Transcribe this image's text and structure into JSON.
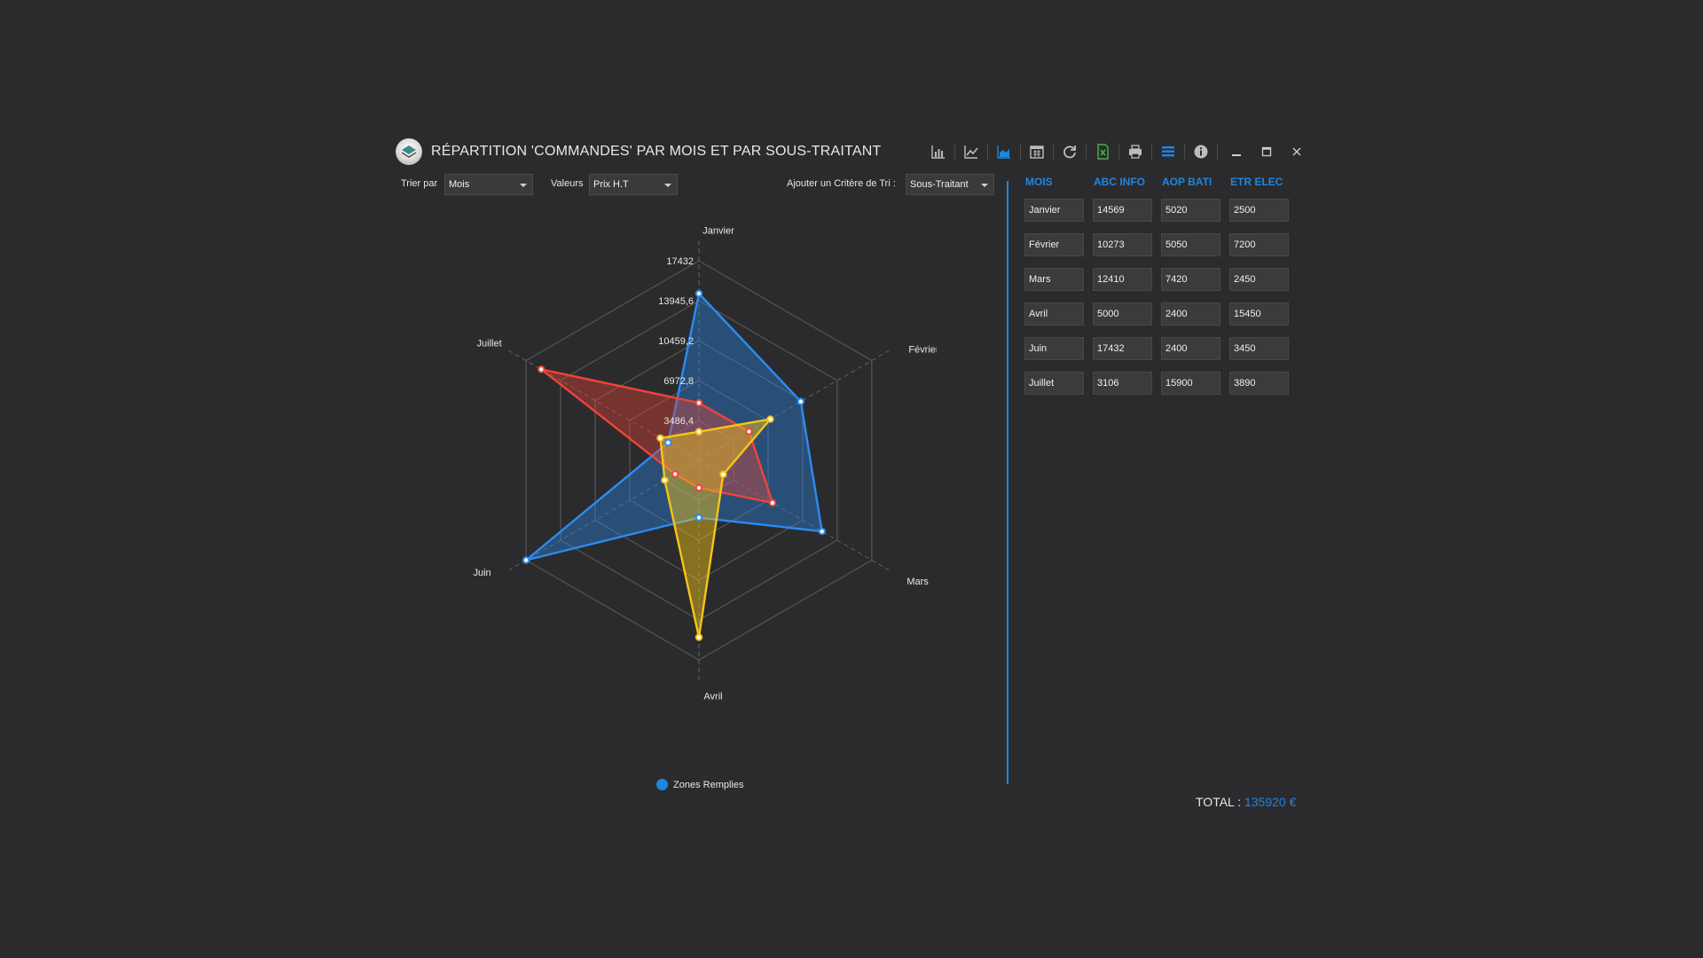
{
  "title": "RÉPARTITION 'COMMANDES' PAR MOIS ET PAR SOUS-TRAITANT",
  "toolbar": {
    "icons": [
      "bar-chart-icon",
      "line-chart-icon",
      "area-chart-icon",
      "calendar-icon",
      "refresh-icon",
      "excel-icon",
      "print-icon",
      "list-icon",
      "info-icon"
    ],
    "active": "area-chart-icon"
  },
  "filters": {
    "sort_label": "Trier par",
    "sort_value": "Mois",
    "values_label": "Valeurs",
    "values_value": "Prix H.T",
    "criteria_label": "Ajouter un Critère de Tri :",
    "criteria_value": "Sous-Traitant"
  },
  "colors": {
    "accent": "#1f86e0",
    "series": [
      "#2b8cf0",
      "#f04438",
      "#f5c518"
    ]
  },
  "chart_data": {
    "type": "radar",
    "categories": [
      "Janvier",
      "Février",
      "Mars",
      "Avril",
      "Juin",
      "Juillet"
    ],
    "ticks": [
      "3486,4",
      "6972,8",
      "10459,2",
      "13945,6",
      "17432"
    ],
    "rmax": 17432,
    "series": [
      {
        "name": "ABC INFO",
        "values": [
          14569,
          10273,
          12410,
          5000,
          17432,
          3106
        ]
      },
      {
        "name": "AOP BATI",
        "values": [
          5020,
          5050,
          7420,
          2400,
          2400,
          15900
        ]
      },
      {
        "name": "ETR ELEC",
        "values": [
          2500,
          7200,
          2450,
          15450,
          3450,
          3890
        ]
      }
    ],
    "legend": "Zones Remplies"
  },
  "table": {
    "headers": [
      "MOIS",
      "ABC INFO",
      "AOP BATI",
      "ETR ELEC"
    ],
    "rows": [
      [
        "Janvier",
        "14569",
        "5020",
        "2500"
      ],
      [
        "Février",
        "10273",
        "5050",
        "7200"
      ],
      [
        "Mars",
        "12410",
        "7420",
        "2450"
      ],
      [
        "Avril",
        "5000",
        "2400",
        "15450"
      ],
      [
        "Juin",
        "17432",
        "2400",
        "3450"
      ],
      [
        "Juillet",
        "3106",
        "15900",
        "3890"
      ]
    ]
  },
  "total": {
    "label": "TOTAL :",
    "value": "135920 €"
  }
}
